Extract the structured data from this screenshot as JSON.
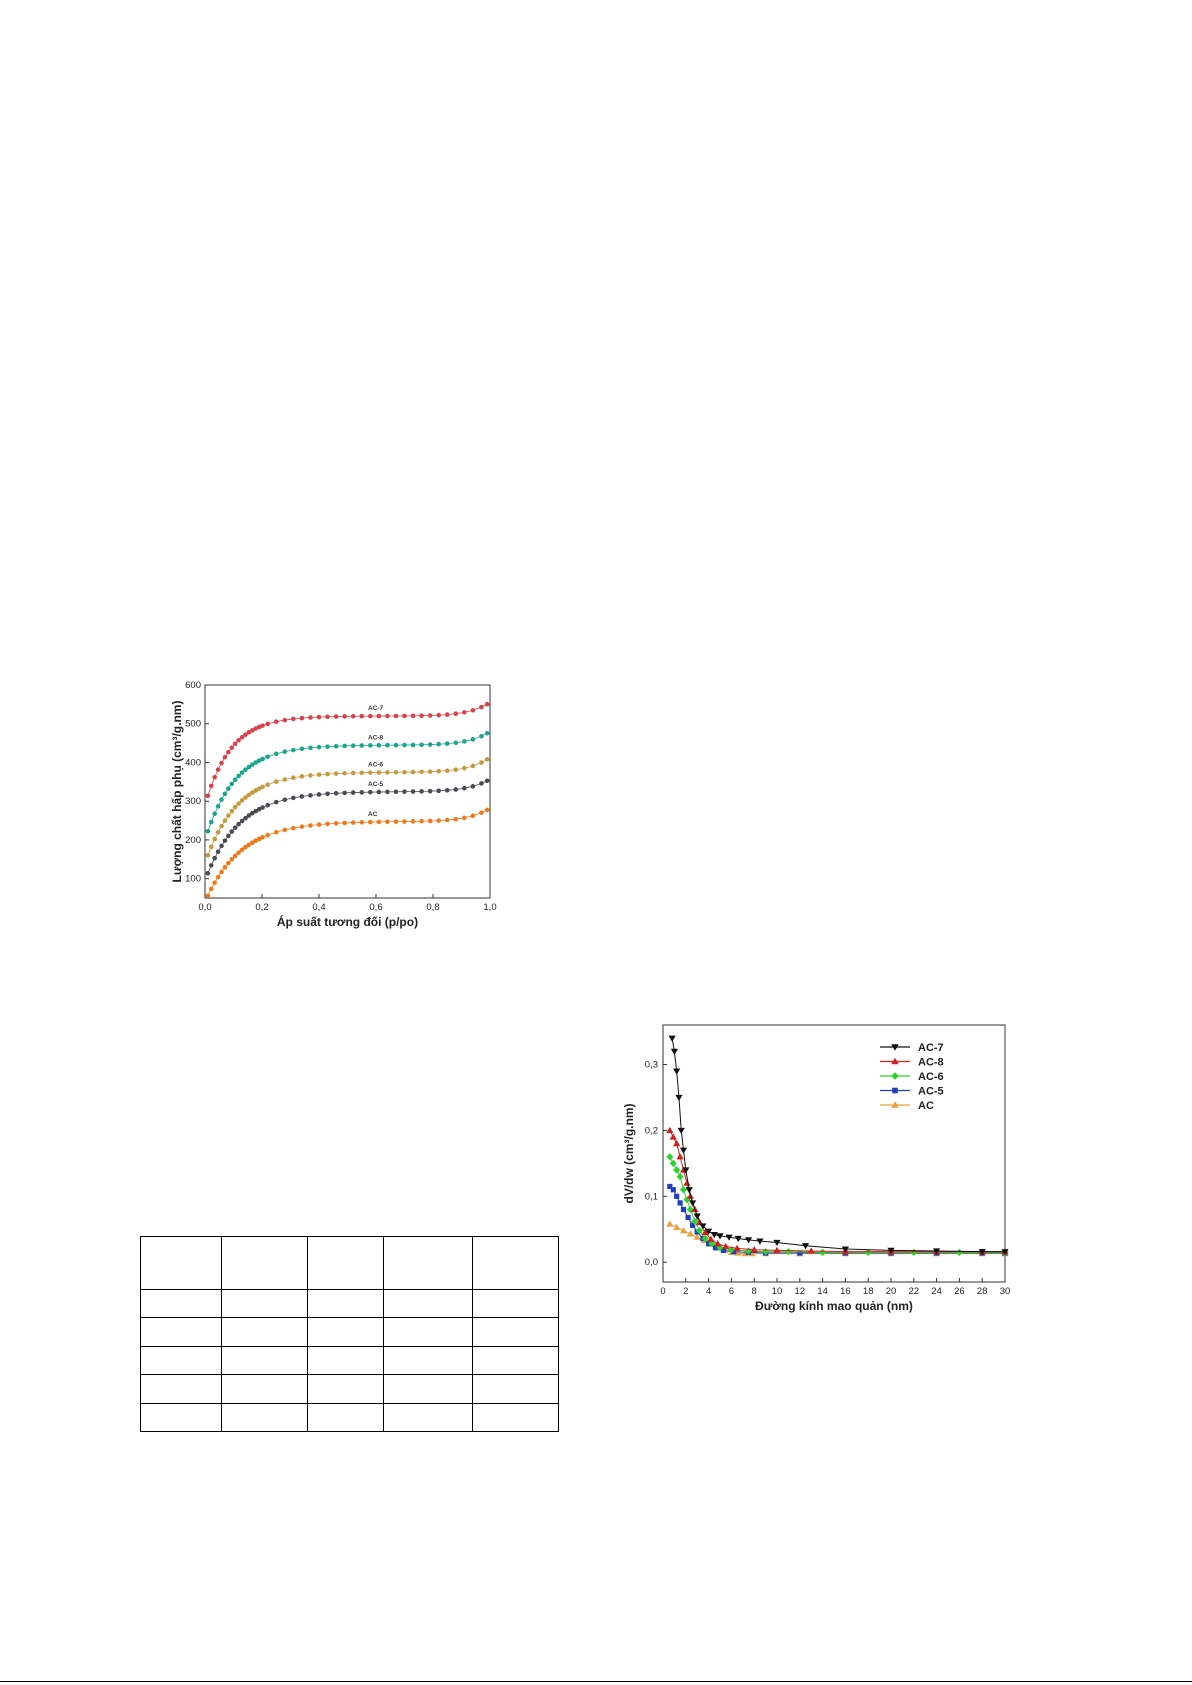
{
  "chart_data": [
    {
      "type": "scatter",
      "xlabel": "Áp suất tương đối (p/po)",
      "ylabel": "Lượng chất hấp phụ (cm³/g.nm)",
      "xlim": [
        0,
        1
      ],
      "ylim": [
        50,
        600
      ],
      "x_ticks": [
        "0,0",
        "0,2",
        "0,4",
        "0,6",
        "0,8",
        "1,0"
      ],
      "y_ticks": [
        "100",
        "200",
        "300",
        "400",
        "500",
        "600"
      ],
      "series": [
        {
          "name": "AC-7",
          "color": "#d9424c",
          "marker": "circle",
          "params": {
            "y0": 290,
            "a": 230,
            "k": 11,
            "end": 35
          }
        },
        {
          "name": "AC-8",
          "color": "#1aa58f",
          "marker": "circle",
          "params": {
            "y0": 200,
            "a": 245,
            "k": 9.5,
            "end": 35
          }
        },
        {
          "name": "AC-6",
          "color": "#c59a3e",
          "marker": "circle",
          "params": {
            "y0": 140,
            "a": 235,
            "k": 9.0,
            "end": 38
          }
        },
        {
          "name": "AC-5",
          "color": "#4a4a52",
          "marker": "circle",
          "params": {
            "y0": 95,
            "a": 230,
            "k": 8.5,
            "end": 32
          }
        },
        {
          "name": "AC",
          "color": "#f07a1a",
          "marker": "circle",
          "params": {
            "y0": 40,
            "a": 208,
            "k": 8.0,
            "end": 34
          }
        }
      ],
      "series_labels_at_x": 0.6
    },
    {
      "type": "line",
      "xlabel": "Đường kính mao quản (nm)",
      "ylabel": "dV/dw (cm³/g.nm)",
      "xlim": [
        0,
        30
      ],
      "ylim": [
        -0.03,
        0.36
      ],
      "x_ticks": [
        "0",
        "2",
        "4",
        "6",
        "8",
        "10",
        "12",
        "14",
        "16",
        "18",
        "20",
        "22",
        "24",
        "26",
        "28",
        "30"
      ],
      "y_ticks": [
        "0,0",
        "0,1",
        "0,2",
        "0,3"
      ],
      "legend_position": "top-right",
      "series": [
        {
          "name": "AC-7",
          "color": "#111111",
          "marker": "triangle-down",
          "x": [
            0.8,
            1.0,
            1.2,
            1.4,
            1.6,
            1.8,
            2.0,
            2.3,
            2.6,
            3.0,
            3.5,
            4.0,
            4.5,
            5.0,
            5.8,
            6.6,
            7.5,
            8.5,
            10,
            12.5,
            16,
            20,
            24,
            28,
            30
          ],
          "y": [
            0.34,
            0.32,
            0.29,
            0.25,
            0.2,
            0.17,
            0.14,
            0.11,
            0.09,
            0.07,
            0.055,
            0.047,
            0.042,
            0.04,
            0.038,
            0.036,
            0.034,
            0.032,
            0.03,
            0.025,
            0.02,
            0.018,
            0.017,
            0.016,
            0.016
          ]
        },
        {
          "name": "AC-8",
          "color": "#d11f1f",
          "marker": "triangle-up",
          "x": [
            0.6,
            0.9,
            1.2,
            1.5,
            1.8,
            2.1,
            2.4,
            2.8,
            3.2,
            3.7,
            4.2,
            4.8,
            5.5,
            6.5,
            8,
            10,
            13,
            16,
            20,
            24,
            28,
            30
          ],
          "y": [
            0.2,
            0.19,
            0.18,
            0.16,
            0.14,
            0.12,
            0.1,
            0.08,
            0.06,
            0.045,
            0.035,
            0.028,
            0.024,
            0.021,
            0.019,
            0.018,
            0.017,
            0.016,
            0.016,
            0.016,
            0.016,
            0.016
          ]
        },
        {
          "name": "AC-6",
          "color": "#2fd12f",
          "marker": "diamond",
          "x": [
            0.6,
            0.9,
            1.2,
            1.5,
            1.8,
            2.1,
            2.4,
            2.8,
            3.2,
            3.7,
            4.3,
            5,
            6,
            7.5,
            9,
            11,
            14,
            18,
            22,
            26,
            30
          ],
          "y": [
            0.16,
            0.15,
            0.14,
            0.13,
            0.11,
            0.095,
            0.08,
            0.062,
            0.048,
            0.036,
            0.028,
            0.022,
            0.019,
            0.017,
            0.016,
            0.016,
            0.015,
            0.015,
            0.015,
            0.015,
            0.015
          ]
        },
        {
          "name": "AC-5",
          "color": "#1f3fbf",
          "marker": "square",
          "x": [
            0.6,
            0.9,
            1.2,
            1.5,
            1.8,
            2.2,
            2.6,
            3.0,
            3.5,
            4.0,
            4.6,
            5.3,
            6.2,
            7.5,
            9,
            12,
            16,
            20,
            24,
            28,
            30
          ],
          "y": [
            0.115,
            0.11,
            0.1,
            0.09,
            0.08,
            0.068,
            0.056,
            0.046,
            0.036,
            0.028,
            0.022,
            0.018,
            0.016,
            0.015,
            0.014,
            0.014,
            0.014,
            0.014,
            0.014,
            0.014,
            0.014
          ]
        },
        {
          "name": "AC",
          "color": "#e8a13c",
          "marker": "triangle-up",
          "x": [
            0.6,
            1.2,
            1.8,
            2.4,
            3.0,
            3.6,
            4.2,
            4.8,
            5.4,
            6.0,
            6.6,
            7.2,
            7.8,
            9,
            12,
            16,
            20,
            24,
            28,
            30
          ],
          "y": [
            0.058,
            0.053,
            0.048,
            0.043,
            0.038,
            0.033,
            0.028,
            0.022,
            0.018,
            0.015,
            0.014,
            0.013,
            0.013,
            0.013,
            0.013,
            0.013,
            0.013,
            0.013,
            0.013,
            0.013
          ]
        }
      ]
    }
  ]
}
